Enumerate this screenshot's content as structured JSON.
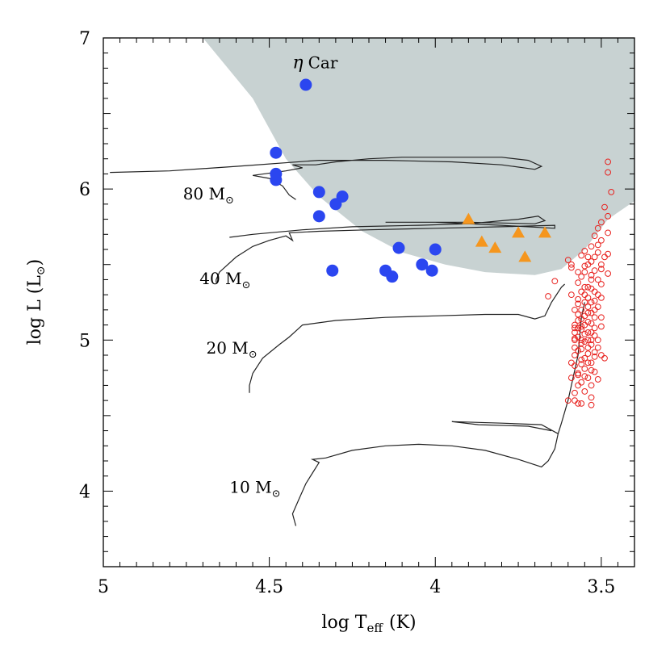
{
  "chart_data": {
    "type": "scatter",
    "title": "",
    "xlabel": "log T",
    "xlabel_sub": "eff",
    "xlabel_unit": "(K)",
    "ylabel": "log L (L",
    "ylabel_sym": "⊙",
    "ylabel_end": ")",
    "xlim": [
      5.0,
      3.4
    ],
    "ylim": [
      3.5,
      7.0
    ],
    "x_ticks": [
      {
        "value": 5.0,
        "label": "5"
      },
      {
        "value": 4.5,
        "label": "4.5"
      },
      {
        "value": 4.0,
        "label": "4"
      },
      {
        "value": 3.5,
        "label": "3.5"
      }
    ],
    "y_ticks": [
      {
        "value": 4,
        "label": "4"
      },
      {
        "value": 5,
        "label": "5"
      },
      {
        "value": 6,
        "label": "6"
      },
      {
        "value": 7,
        "label": "7"
      }
    ],
    "grey_region": {
      "name": "forbidden zone",
      "color": "#c8d2d2",
      "boundary": [
        [
          4.7,
          7.0
        ],
        [
          4.55,
          6.6
        ],
        [
          4.45,
          6.2
        ],
        [
          4.35,
          5.95
        ],
        [
          4.22,
          5.72
        ],
        [
          4.1,
          5.58
        ],
        [
          3.97,
          5.5
        ],
        [
          3.85,
          5.45
        ],
        [
          3.7,
          5.43
        ],
        [
          3.62,
          5.47
        ],
        [
          3.55,
          5.6
        ],
        [
          3.48,
          5.8
        ],
        [
          3.4,
          5.92
        ],
        [
          3.4,
          7.0
        ]
      ]
    },
    "series": [
      {
        "name": "blue circles",
        "marker": "filled-circle",
        "color": "#2b46f0",
        "points": [
          [
            4.39,
            6.69
          ],
          [
            4.48,
            6.24
          ],
          [
            4.48,
            6.1
          ],
          [
            4.48,
            6.06
          ],
          [
            4.35,
            5.98
          ],
          [
            4.28,
            5.95
          ],
          [
            4.3,
            5.9
          ],
          [
            4.35,
            5.82
          ],
          [
            4.11,
            5.61
          ],
          [
            4.0,
            5.6
          ],
          [
            4.04,
            5.5
          ],
          [
            4.01,
            5.46
          ],
          [
            4.31,
            5.46
          ],
          [
            4.15,
            5.46
          ],
          [
            4.13,
            5.42
          ]
        ]
      },
      {
        "name": "orange triangles",
        "marker": "filled-triangle",
        "color": "#f5961e",
        "points": [
          [
            3.9,
            5.8
          ],
          [
            3.86,
            5.65
          ],
          [
            3.82,
            5.61
          ],
          [
            3.75,
            5.71
          ],
          [
            3.67,
            5.71
          ],
          [
            3.73,
            5.55
          ]
        ]
      },
      {
        "name": "red open circles",
        "marker": "open-circle",
        "color": "#e8211e",
        "points": [
          [
            3.48,
            6.18
          ],
          [
            3.48,
            6.11
          ],
          [
            3.47,
            5.98
          ],
          [
            3.49,
            5.88
          ],
          [
            3.48,
            5.82
          ],
          [
            3.5,
            5.78
          ],
          [
            3.51,
            5.74
          ],
          [
            3.48,
            5.71
          ],
          [
            3.52,
            5.69
          ],
          [
            3.5,
            5.66
          ],
          [
            3.53,
            5.62
          ],
          [
            3.51,
            5.58
          ],
          [
            3.54,
            5.55
          ],
          [
            3.48,
            5.57
          ],
          [
            3.53,
            5.52
          ],
          [
            3.5,
            5.5
          ],
          [
            3.55,
            5.49
          ],
          [
            3.52,
            5.46
          ],
          [
            3.48,
            5.44
          ],
          [
            3.56,
            5.42
          ],
          [
            3.53,
            5.4
          ],
          [
            3.5,
            5.37
          ],
          [
            3.54,
            5.35
          ],
          [
            3.52,
            5.32
          ],
          [
            3.55,
            5.3
          ],
          [
            3.5,
            5.28
          ],
          [
            3.57,
            5.27
          ],
          [
            3.53,
            5.25
          ],
          [
            3.51,
            5.22
          ],
          [
            3.56,
            5.2
          ],
          [
            3.54,
            5.18
          ],
          [
            3.52,
            5.15
          ],
          [
            3.57,
            5.13
          ],
          [
            3.53,
            5.11
          ],
          [
            3.5,
            5.09
          ],
          [
            3.56,
            5.07
          ],
          [
            3.54,
            5.05
          ],
          [
            3.52,
            5.03
          ],
          [
            3.58,
            5.01
          ],
          [
            3.55,
            4.99
          ],
          [
            3.53,
            4.97
          ],
          [
            3.51,
            4.95
          ],
          [
            3.57,
            4.93
          ],
          [
            3.54,
            4.91
          ],
          [
            3.52,
            4.89
          ],
          [
            3.49,
            4.88
          ],
          [
            3.56,
            4.87
          ],
          [
            3.53,
            4.85
          ],
          [
            3.58,
            4.83
          ],
          [
            3.55,
            4.81
          ],
          [
            3.52,
            4.79
          ],
          [
            3.57,
            4.77
          ],
          [
            3.54,
            4.75
          ],
          [
            3.51,
            4.74
          ],
          [
            3.56,
            4.72
          ],
          [
            3.53,
            4.7
          ],
          [
            3.55,
            4.66
          ],
          [
            3.53,
            4.62
          ],
          [
            3.58,
            4.6
          ],
          [
            3.56,
            4.58
          ],
          [
            3.53,
            4.57
          ],
          [
            3.6,
            4.6
          ],
          [
            3.58,
            4.65
          ],
          [
            3.57,
            4.58
          ],
          [
            3.58,
            4.95
          ],
          [
            3.58,
            5.05
          ],
          [
            3.58,
            5.2
          ],
          [
            3.59,
            5.5
          ],
          [
            3.59,
            5.48
          ],
          [
            3.6,
            5.53
          ],
          [
            3.56,
            5.56
          ],
          [
            3.55,
            5.59
          ],
          [
            3.54,
            5.5
          ],
          [
            3.5,
            5.47
          ],
          [
            3.49,
            5.55
          ],
          [
            3.51,
            5.63
          ],
          [
            3.52,
            5.55
          ],
          [
            3.55,
            5.45
          ],
          [
            3.57,
            5.38
          ],
          [
            3.56,
            5.32
          ],
          [
            3.55,
            5.25
          ],
          [
            3.57,
            5.17
          ],
          [
            3.56,
            5.09
          ],
          [
            3.58,
            5.0
          ],
          [
            3.58,
            4.9
          ],
          [
            3.56,
            4.84
          ],
          [
            3.57,
            4.78
          ],
          [
            3.59,
            4.85
          ],
          [
            3.59,
            4.75
          ],
          [
            3.54,
            5.0
          ],
          [
            3.55,
            5.1
          ],
          [
            3.54,
            5.22
          ],
          [
            3.53,
            5.34
          ],
          [
            3.52,
            5.08
          ],
          [
            3.51,
            5.0
          ],
          [
            3.52,
            4.92
          ],
          [
            3.53,
            4.8
          ],
          [
            3.56,
            4.94
          ],
          [
            3.55,
            5.04
          ],
          [
            3.56,
            5.14
          ],
          [
            3.57,
            5.24
          ],
          [
            3.54,
            5.28
          ],
          [
            3.53,
            5.18
          ],
          [
            3.55,
            4.88
          ],
          [
            3.54,
            4.85
          ],
          [
            3.58,
            5.1
          ],
          [
            3.57,
            5.02
          ],
          [
            3.55,
            4.76
          ],
          [
            3.57,
            4.7
          ],
          [
            3.5,
            4.9
          ],
          [
            3.53,
            5.05
          ],
          [
            3.52,
            5.2
          ],
          [
            3.51,
            5.3
          ],
          [
            3.5,
            5.15
          ],
          [
            3.54,
            4.95
          ],
          [
            3.56,
            5.0
          ],
          [
            3.55,
            5.35
          ],
          [
            3.57,
            5.45
          ],
          [
            3.53,
            5.43
          ],
          [
            3.51,
            5.4
          ],
          [
            3.66,
            5.29
          ],
          [
            3.64,
            5.39
          ],
          [
            3.59,
            5.3
          ],
          [
            3.58,
            5.08
          ],
          [
            3.56,
            4.98
          ],
          [
            3.54,
            5.12
          ],
          [
            3.52,
            5.26
          ],
          [
            3.55,
            5.16
          ],
          [
            3.53,
            5.0
          ],
          [
            3.57,
            5.08
          ]
        ]
      }
    ],
    "tracks": [
      {
        "name": "80 Msun track",
        "label": "80 M",
        "label_sym": "⊙",
        "label_at": [
          4.76,
          5.93
        ],
        "points": [
          [
            4.42,
            5.93
          ],
          [
            4.44,
            5.96
          ],
          [
            4.46,
            6.02
          ],
          [
            4.5,
            6.07
          ],
          [
            4.55,
            6.09
          ],
          [
            4.45,
            6.12
          ],
          [
            4.4,
            6.14
          ],
          [
            4.43,
            6.16
          ],
          [
            4.36,
            6.16
          ],
          [
            4.3,
            6.18
          ],
          [
            4.2,
            6.2
          ],
          [
            4.1,
            6.21
          ],
          [
            4.0,
            6.21
          ],
          [
            3.9,
            6.21
          ],
          [
            3.8,
            6.21
          ],
          [
            3.72,
            6.19
          ],
          [
            3.68,
            6.15
          ],
          [
            3.7,
            6.13
          ],
          [
            3.8,
            6.16
          ],
          [
            3.95,
            6.18
          ],
          [
            4.15,
            6.19
          ],
          [
            4.35,
            6.19
          ],
          [
            4.6,
            6.15
          ],
          [
            4.8,
            6.12
          ],
          [
            4.98,
            6.11
          ]
        ]
      },
      {
        "name": "40 Msun track",
        "label": "40 M",
        "label_sym": "⊙",
        "label_at": [
          4.71,
          5.37
        ],
        "points": [
          [
            4.66,
            5.38
          ],
          [
            4.66,
            5.4
          ],
          [
            4.65,
            5.45
          ],
          [
            4.6,
            5.55
          ],
          [
            4.55,
            5.62
          ],
          [
            4.5,
            5.66
          ],
          [
            4.45,
            5.69
          ],
          [
            4.43,
            5.66
          ],
          [
            4.44,
            5.71
          ],
          [
            4.35,
            5.72
          ],
          [
            4.2,
            5.73
          ],
          [
            4.0,
            5.74
          ],
          [
            3.8,
            5.75
          ],
          [
            3.64,
            5.76
          ],
          [
            3.64,
            5.74
          ],
          [
            3.8,
            5.76
          ],
          [
            4.0,
            5.78
          ],
          [
            4.15,
            5.78
          ],
          [
            3.9,
            5.78
          ],
          [
            3.7,
            5.77
          ],
          [
            3.67,
            5.79
          ],
          [
            3.69,
            5.82
          ],
          [
            3.75,
            5.8
          ],
          [
            3.9,
            5.77
          ],
          [
            4.05,
            5.76
          ],
          [
            4.25,
            5.75
          ],
          [
            4.4,
            5.73
          ],
          [
            4.55,
            5.7
          ],
          [
            4.62,
            5.68
          ]
        ]
      },
      {
        "name": "20 Msun track",
        "label": "20 M",
        "label_sym": "⊙",
        "label_at": [
          4.69,
          4.91
        ],
        "points": [
          [
            4.56,
            4.65
          ],
          [
            4.56,
            4.7
          ],
          [
            4.55,
            4.78
          ],
          [
            4.52,
            4.88
          ],
          [
            4.47,
            4.97
          ],
          [
            4.44,
            5.02
          ],
          [
            4.42,
            5.06
          ],
          [
            4.43,
            5.04
          ],
          [
            4.4,
            5.1
          ],
          [
            4.3,
            5.13
          ],
          [
            4.15,
            5.15
          ],
          [
            4.0,
            5.16
          ],
          [
            3.85,
            5.17
          ],
          [
            3.75,
            5.17
          ],
          [
            3.7,
            5.14
          ],
          [
            3.67,
            5.16
          ],
          [
            3.65,
            5.25
          ],
          [
            3.62,
            5.35
          ],
          [
            3.61,
            5.37
          ]
        ]
      },
      {
        "name": "10 Msun track",
        "label": "10 M",
        "label_sym": "⊙",
        "label_at": [
          4.62,
          3.99
        ],
        "points": [
          [
            4.42,
            3.77
          ],
          [
            4.43,
            3.85
          ],
          [
            4.41,
            3.95
          ],
          [
            4.39,
            4.05
          ],
          [
            4.37,
            4.12
          ],
          [
            4.35,
            4.19
          ],
          [
            4.37,
            4.21
          ],
          [
            4.33,
            4.22
          ],
          [
            4.25,
            4.27
          ],
          [
            4.15,
            4.3
          ],
          [
            4.05,
            4.31
          ],
          [
            3.95,
            4.3
          ],
          [
            3.85,
            4.27
          ],
          [
            3.75,
            4.21
          ],
          [
            3.68,
            4.16
          ],
          [
            3.66,
            4.2
          ],
          [
            3.64,
            4.28
          ],
          [
            3.63,
            4.38
          ],
          [
            3.62,
            4.45
          ],
          [
            3.6,
            4.6
          ],
          [
            3.57,
            4.9
          ],
          [
            3.56,
            5.15
          ],
          [
            3.55,
            5.25
          ]
        ],
        "loop": [
          [
            3.63,
            4.38
          ],
          [
            3.68,
            4.44
          ],
          [
            3.8,
            4.45
          ],
          [
            3.95,
            4.46
          ],
          [
            3.87,
            4.44
          ],
          [
            3.72,
            4.43
          ],
          [
            3.65,
            4.4
          ]
        ]
      }
    ],
    "annotations": [
      {
        "name": "eta-car",
        "greek": "η",
        "text": "Car",
        "at": [
          4.43,
          6.8
        ]
      }
    ]
  }
}
